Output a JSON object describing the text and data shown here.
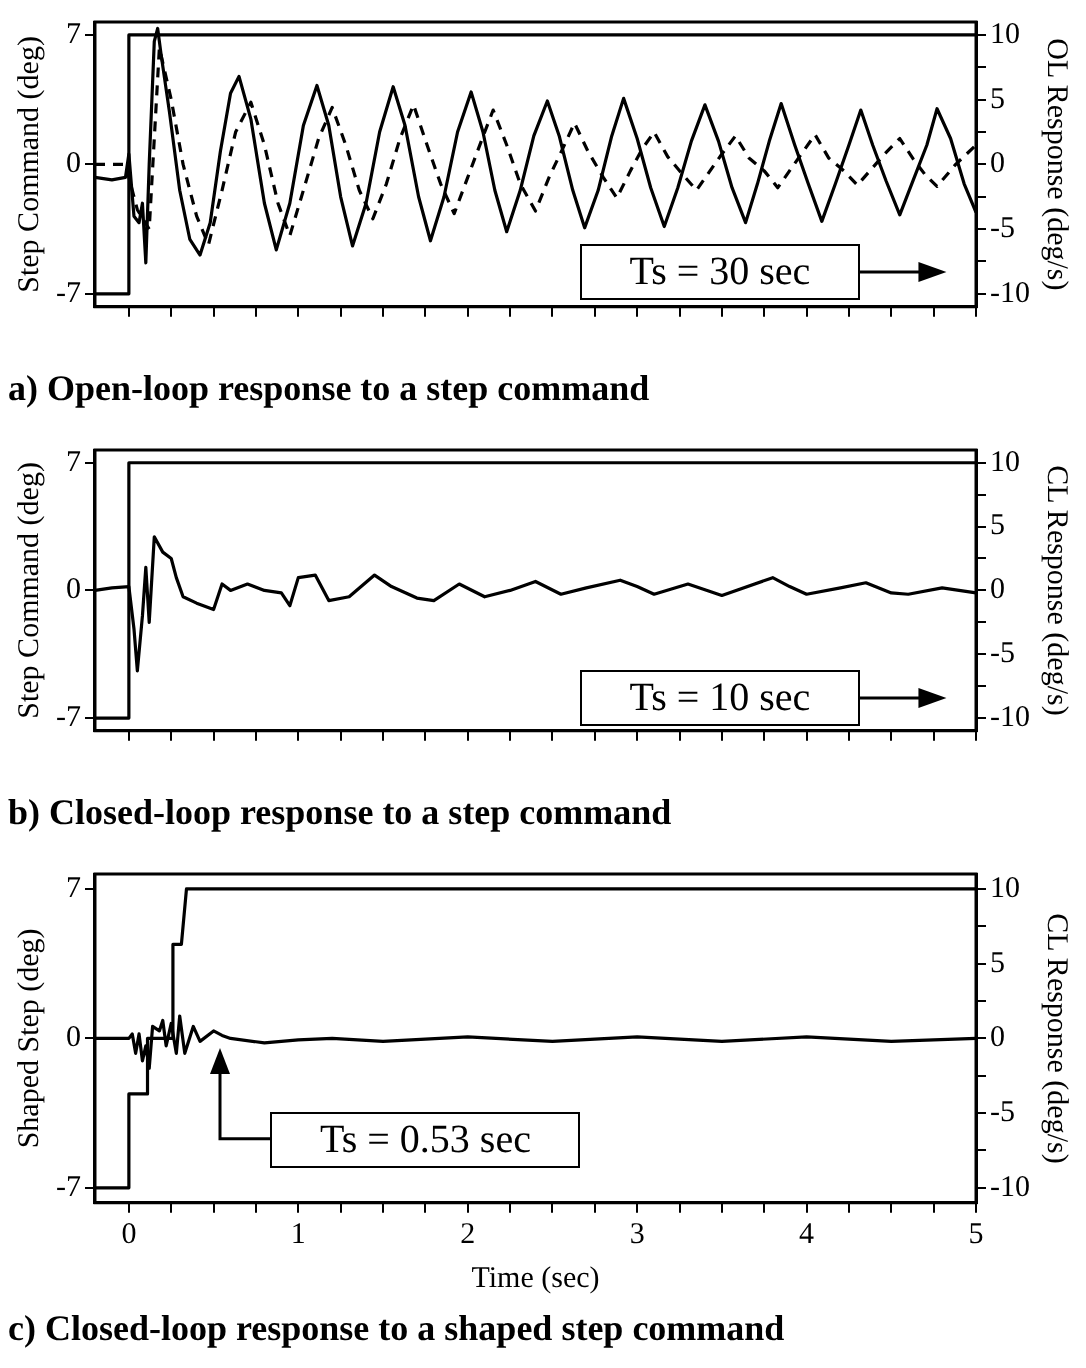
{
  "chart_data": [
    {
      "type": "line",
      "title": "a) Open-loop response to a step command",
      "ylabel": "Step Command (deg)",
      "y2label": "OL Response (deg/s)",
      "xlim": [
        -0.2,
        5
      ],
      "xticks": [
        0,
        {
          "value": 0.25,
          "label": null
        },
        {
          "value": 0.5,
          "label": null
        },
        {
          "value": 0.75,
          "label": null
        },
        1,
        {
          "value": 1.25,
          "label": null
        },
        {
          "value": 1.5,
          "label": null
        },
        {
          "value": 1.75,
          "label": null
        },
        2,
        {
          "value": 2.25,
          "label": null
        },
        {
          "value": 2.5,
          "label": null
        },
        {
          "value": 2.75,
          "label": null
        },
        3,
        {
          "value": 3.25,
          "label": null
        },
        {
          "value": 3.5,
          "label": null
        },
        {
          "value": 3.75,
          "label": null
        },
        4,
        {
          "value": 4.25,
          "label": null
        },
        {
          "value": 4.5,
          "label": null
        },
        {
          "value": 4.75,
          "label": null
        },
        5
      ],
      "ylim": [
        -7.7,
        7.7
      ],
      "yticks": [
        -7,
        0,
        7
      ],
      "y2lim": [
        -11,
        11
      ],
      "y2ticks": [
        -10,
        {
          "value": -7.5,
          "label": null
        },
        -5,
        {
          "value": -2.5,
          "label": null
        },
        0,
        {
          "value": 2.5,
          "label": null
        },
        5,
        {
          "value": 7.5,
          "label": null
        },
        10
      ],
      "tick_labels": "y",
      "grid": false,
      "legend": false,
      "marker": "none",
      "line_style": "solid",
      "annotations": [
        "Ts = 30 sec"
      ],
      "series": [
        {
          "color": "#000000",
          "x": [
            -0.2,
            0,
            0,
            5
          ],
          "values": [
            -7,
            -7,
            7,
            7
          ]
        },
        {
          "color": "#000000",
          "axis": "y2",
          "x": [
            -0.2,
            -0.1,
            -0.02,
            0,
            0.03,
            0.06,
            0.08,
            0.1,
            0.12,
            0.15,
            0.17,
            0.19,
            0.24,
            0.3,
            0.36,
            0.42,
            0.48,
            0.54,
            0.6,
            0.65,
            0.72,
            0.8,
            0.87,
            0.95,
            1.03,
            1.11,
            1.18,
            1.25,
            1.32,
            1.4,
            1.48,
            1.56,
            1.63,
            1.71,
            1.78,
            1.86,
            1.94,
            2.02,
            2.09,
            2.16,
            2.23,
            2.31,
            2.39,
            2.47,
            2.54,
            2.62,
            2.69,
            2.77,
            2.85,
            2.92,
            3.0,
            3.08,
            3.16,
            3.24,
            3.32,
            3.4,
            3.48,
            3.56,
            3.64,
            3.71,
            3.78,
            3.85,
            3.93,
            4.01,
            4.09,
            4.17,
            4.25,
            4.32,
            4.39,
            4.47,
            4.55,
            4.63,
            4.71,
            4.77,
            4.85,
            4.93,
            5.0
          ],
          "values": [
            -1.0,
            -1.2,
            -1.0,
            0.8,
            -4.0,
            -4.5,
            -3.0,
            -7.6,
            0,
            9.5,
            10.5,
            8.5,
            4,
            -2,
            -5.8,
            -7.0,
            -4.5,
            1,
            5.5,
            6.8,
            3.5,
            -3,
            -6.6,
            -3,
            3,
            6.1,
            3,
            -2.5,
            -6.3,
            -3,
            2.5,
            6.0,
            3,
            -2.5,
            -5.9,
            -2.5,
            2.5,
            5.6,
            2.5,
            -2,
            -5.2,
            -2,
            2.2,
            4.9,
            2.2,
            -2,
            -4.9,
            -2,
            2.2,
            5.1,
            2,
            -1.8,
            -4.8,
            -1.8,
            1.8,
            4.6,
            1.8,
            -1.8,
            -4.5,
            -1.5,
            1.8,
            4.7,
            1.5,
            -1.5,
            -4.4,
            -1.5,
            1.5,
            4.2,
            1.5,
            -1.3,
            -3.9,
            -1.2,
            1.5,
            4.3,
            2,
            -1.5,
            -3.7
          ]
        },
        {
          "color": "#000000",
          "axis": "y2",
          "line_style": "dashed",
          "x": [
            -0.2,
            -0.02,
            0.05,
            0.12,
            0.18,
            0.25,
            0.32,
            0.4,
            0.47,
            0.55,
            0.63,
            0.72,
            0.8,
            0.88,
            0.95,
            1.03,
            1.12,
            1.2,
            1.28,
            1.36,
            1.44,
            1.52,
            1.6,
            1.68,
            1.76,
            1.84,
            1.92,
            2.0,
            2.08,
            2.15,
            2.23,
            2.31,
            2.4,
            2.48,
            2.56,
            2.63,
            2.71,
            2.8,
            2.88,
            2.96,
            3.03,
            3.1,
            3.18,
            3.27,
            3.35,
            3.43,
            3.5,
            3.58,
            3.66,
            3.75,
            3.83,
            3.91,
            3.98,
            4.05,
            4.13,
            4.22,
            4.3,
            4.38,
            4.46,
            4.55,
            4.63,
            4.7,
            4.77,
            4.88,
            5.0
          ],
          "values": [
            0,
            0,
            -3.5,
            -5,
            9,
            5,
            0,
            -4,
            -6.2,
            -2,
            2.5,
            4.8,
            1.5,
            -3,
            -5.5,
            -2,
            2,
            4.4,
            1.5,
            -2,
            -4.2,
            -1.5,
            2,
            4.6,
            1.5,
            -1.5,
            -3.8,
            -1,
            1.8,
            4.2,
            1.5,
            -1.5,
            -3.6,
            -1,
            1.2,
            3.2,
            1,
            -1,
            -2.6,
            -0.5,
            1.2,
            2.5,
            0.6,
            -0.8,
            -2.0,
            -0.5,
            0.8,
            2.2,
            0.5,
            -0.5,
            -1.8,
            -0.3,
            1.0,
            2.3,
            0.5,
            -0.5,
            -1.6,
            -0.4,
            0.8,
            2.0,
            0.4,
            -0.8,
            -1.7,
            0,
            1.5
          ]
        }
      ]
    },
    {
      "type": "line",
      "title": "b) Closed-loop response to a step command",
      "ylabel": "Step Command (deg)",
      "y2label": "CL Response (deg/s)",
      "xlim": [
        -0.2,
        5
      ],
      "xticks": [
        0,
        {
          "value": 0.25,
          "label": null
        },
        {
          "value": 0.5,
          "label": null
        },
        {
          "value": 0.75,
          "label": null
        },
        1,
        {
          "value": 1.25,
          "label": null
        },
        {
          "value": 1.5,
          "label": null
        },
        {
          "value": 1.75,
          "label": null
        },
        2,
        {
          "value": 2.25,
          "label": null
        },
        {
          "value": 2.5,
          "label": null
        },
        {
          "value": 2.75,
          "label": null
        },
        3,
        {
          "value": 3.25,
          "label": null
        },
        {
          "value": 3.5,
          "label": null
        },
        {
          "value": 3.75,
          "label": null
        },
        4,
        {
          "value": 4.25,
          "label": null
        },
        {
          "value": 4.5,
          "label": null
        },
        {
          "value": 4.75,
          "label": null
        },
        5
      ],
      "ylim": [
        -7.7,
        7.7
      ],
      "yticks": [
        -7,
        0,
        7
      ],
      "y2lim": [
        -11,
        11
      ],
      "y2ticks": [
        -10,
        {
          "value": -7.5,
          "label": null
        },
        -5,
        {
          "value": -2.5,
          "label": null
        },
        0,
        {
          "value": 2.5,
          "label": null
        },
        5,
        {
          "value": 7.5,
          "label": null
        },
        10
      ],
      "tick_labels": "y",
      "grid": false,
      "legend": false,
      "marker": "none",
      "line_style": "solid",
      "annotations": [
        "Ts = 10 sec"
      ],
      "series": [
        {
          "color": "#000000",
          "x": [
            -0.2,
            0,
            0,
            5
          ],
          "values": [
            -7,
            -7,
            7,
            7
          ]
        },
        {
          "color": "#000000",
          "axis": "y2",
          "x": [
            -0.2,
            -0.1,
            0,
            0.03,
            0.05,
            0.08,
            0.1,
            0.12,
            0.15,
            0.2,
            0.25,
            0.28,
            0.32,
            0.4,
            0.5,
            0.55,
            0.6,
            0.7,
            0.8,
            0.9,
            0.95,
            1.0,
            1.1,
            1.18,
            1.3,
            1.45,
            1.55,
            1.7,
            1.8,
            1.95,
            2.1,
            2.25,
            2.4,
            2.55,
            2.7,
            2.9,
            3.0,
            3.1,
            3.3,
            3.5,
            3.8,
            3.9,
            4.0,
            4.2,
            4.35,
            4.5,
            4.6,
            4.8,
            5.0
          ],
          "values": [
            0,
            0.2,
            0.3,
            -3.0,
            -6.3,
            -2,
            1.8,
            -2.5,
            4.2,
            3,
            2.5,
            1,
            -0.5,
            -1.0,
            -1.5,
            0.5,
            0,
            0.5,
            0,
            -0.2,
            -1.2,
            1.0,
            1.2,
            -0.8,
            -0.5,
            1.2,
            0.3,
            -0.6,
            -0.8,
            0.5,
            -0.5,
            0,
            0.7,
            -0.3,
            0.2,
            0.8,
            0.3,
            -0.3,
            0.5,
            -0.4,
            1.0,
            0.3,
            -0.3,
            0.2,
            0.6,
            -0.2,
            -0.3,
            0.2,
            -0.2
          ]
        }
      ]
    },
    {
      "type": "line",
      "title": "c) Closed-loop response to a shaped step command",
      "xlabel": "Time (sec)",
      "ylabel": "Shaped Step (deg)",
      "y2label": "CL Response (deg/s)",
      "xlim": [
        -0.2,
        5
      ],
      "xticks": [
        0,
        {
          "value": 0.25,
          "label": null
        },
        {
          "value": 0.5,
          "label": null
        },
        {
          "value": 0.75,
          "label": null
        },
        1,
        {
          "value": 1.25,
          "label": null
        },
        {
          "value": 1.5,
          "label": null
        },
        {
          "value": 1.75,
          "label": null
        },
        2,
        {
          "value": 2.25,
          "label": null
        },
        {
          "value": 2.5,
          "label": null
        },
        {
          "value": 2.75,
          "label": null
        },
        3,
        {
          "value": 3.25,
          "label": null
        },
        {
          "value": 3.5,
          "label": null
        },
        {
          "value": 3.75,
          "label": null
        },
        4,
        {
          "value": 4.25,
          "label": null
        },
        {
          "value": 4.5,
          "label": null
        },
        {
          "value": 4.75,
          "label": null
        },
        5
      ],
      "ylim": [
        -7.7,
        7.7
      ],
      "yticks": [
        -7,
        0,
        7
      ],
      "y2lim": [
        -11,
        11
      ],
      "y2ticks": [
        -10,
        {
          "value": -7.5,
          "label": null
        },
        -5,
        {
          "value": -2.5,
          "label": null
        },
        0,
        {
          "value": 2.5,
          "label": null
        },
        5,
        {
          "value": 7.5,
          "label": null
        },
        10
      ],
      "grid": false,
      "legend": false,
      "marker": "none",
      "line_style": "solid",
      "annotations": [
        "Ts = 0.53 sec"
      ],
      "series": [
        {
          "color": "#000000",
          "x": [
            -0.2,
            0,
            0,
            0.11,
            0.11,
            0.26,
            0.26,
            0.31,
            0.34,
            5
          ],
          "values": [
            -7,
            -7,
            -2.6,
            -2.6,
            0,
            0,
            4.4,
            4.4,
            7,
            7
          ]
        },
        {
          "color": "#000000",
          "axis": "y2",
          "x": [
            -0.2,
            0,
            0.02,
            0.04,
            0.06,
            0.08,
            0.1,
            0.12,
            0.14,
            0.18,
            0.2,
            0.22,
            0.25,
            0.28,
            0.3,
            0.33,
            0.38,
            0.42,
            0.5,
            0.55,
            0.6,
            0.8,
            1.0,
            1.2,
            1.5,
            2.0,
            2.5,
            3.0,
            3.5,
            4.0,
            4.5,
            5.0
          ],
          "values": [
            0,
            0,
            0.3,
            -1.0,
            0.3,
            -1.5,
            -0.5,
            -2.0,
            0.8,
            0.5,
            1.2,
            -0.5,
            1.0,
            -1.0,
            1.5,
            -1.0,
            0.8,
            -0.2,
            0.5,
            0.2,
            0,
            -0.3,
            -0.1,
            0,
            -0.2,
            0.1,
            -0.2,
            0.1,
            -0.2,
            0.1,
            -0.2,
            0
          ]
        }
      ]
    }
  ]
}
